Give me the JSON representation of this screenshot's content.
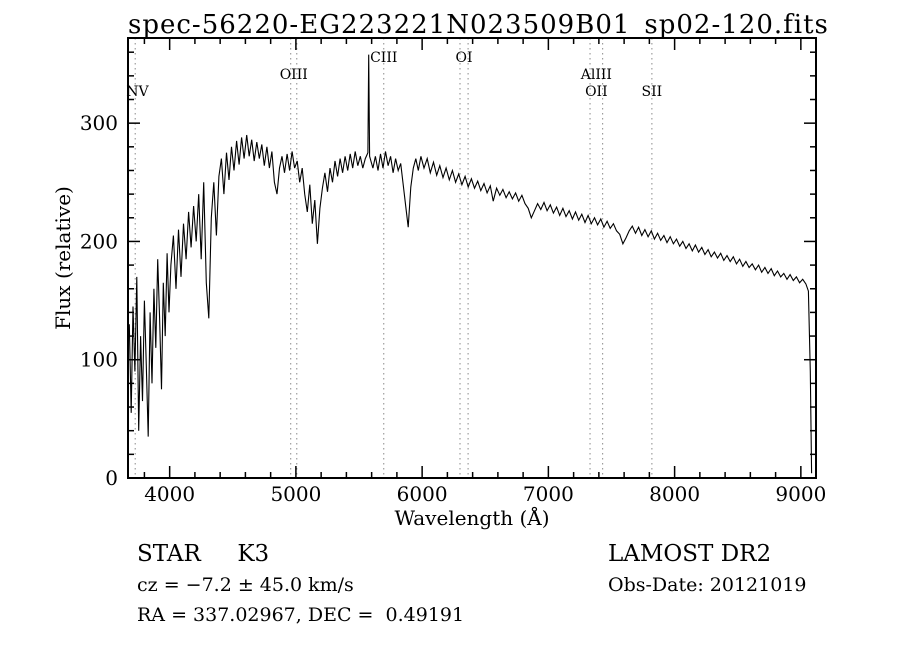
{
  "title": "spec-56220-EG223221N023509B01_sp02-120.fits",
  "footer": {
    "class_label": "STAR     K3",
    "survey": "LAMOST DR2",
    "cz": "cz = −7.2 ± 45.0 km/s",
    "obs_date": "Obs-Date: 20121019",
    "radec": "RA = 337.02967, DEC =  0.49191"
  },
  "chart_data": {
    "type": "line",
    "title": "spec-56220-EG223221N023509B01_sp02-120.fits",
    "xlabel": "Wavelength (Å)",
    "ylabel": "Flux (relative)",
    "xlim": [
      3670,
      9120
    ],
    "ylim": [
      0,
      372
    ],
    "xticks": [
      4000,
      5000,
      6000,
      7000,
      8000,
      9000
    ],
    "yticks": [
      0,
      100,
      200,
      300
    ],
    "x_minor_step": 200,
    "y_minor_step": 20,
    "grid": false,
    "legend": "none",
    "line_color": "#000000",
    "marker_color": "#8a8a8a",
    "line_markers": {
      "lines": [
        3727,
        4959,
        5007,
        5696,
        6300,
        6364,
        7330,
        7430,
        7820
      ],
      "labels": [
        {
          "text": "NV",
          "wavelength": 3745,
          "row": 2
        },
        {
          "text": "OIII",
          "wavelength": 4983,
          "row": 1
        },
        {
          "text": "CIII",
          "wavelength": 5696,
          "row": 0
        },
        {
          "text": "OI",
          "wavelength": 6332,
          "row": 0
        },
        {
          "text": "AlIII",
          "wavelength": 7380,
          "row": 1
        },
        {
          "text": "OII",
          "wavelength": 7380,
          "row": 2
        },
        {
          "text": "SII",
          "wavelength": 7820,
          "row": 2
        }
      ]
    },
    "series": [
      {
        "name": "flux",
        "points": [
          [
            3680,
            130
          ],
          [
            3695,
            55
          ],
          [
            3710,
            145
          ],
          [
            3725,
            90
          ],
          [
            3740,
            170
          ],
          [
            3755,
            40
          ],
          [
            3770,
            120
          ],
          [
            3785,
            65
          ],
          [
            3800,
            150
          ],
          [
            3815,
            95
          ],
          [
            3830,
            35
          ],
          [
            3845,
            140
          ],
          [
            3860,
            80
          ],
          [
            3875,
            160
          ],
          [
            3890,
            110
          ],
          [
            3905,
            185
          ],
          [
            3920,
            135
          ],
          [
            3935,
            75
          ],
          [
            3950,
            165
          ],
          [
            3965,
            120
          ],
          [
            3980,
            190
          ],
          [
            3995,
            140
          ],
          [
            4010,
            180
          ],
          [
            4030,
            205
          ],
          [
            4050,
            160
          ],
          [
            4070,
            210
          ],
          [
            4090,
            170
          ],
          [
            4110,
            215
          ],
          [
            4130,
            185
          ],
          [
            4150,
            225
          ],
          [
            4170,
            195
          ],
          [
            4190,
            230
          ],
          [
            4210,
            200
          ],
          [
            4230,
            240
          ],
          [
            4250,
            185
          ],
          [
            4270,
            250
          ],
          [
            4290,
            165
          ],
          [
            4310,
            135
          ],
          [
            4330,
            220
          ],
          [
            4350,
            250
          ],
          [
            4370,
            205
          ],
          [
            4390,
            255
          ],
          [
            4410,
            270
          ],
          [
            4430,
            240
          ],
          [
            4450,
            275
          ],
          [
            4470,
            252
          ],
          [
            4490,
            280
          ],
          [
            4510,
            260
          ],
          [
            4530,
            285
          ],
          [
            4550,
            265
          ],
          [
            4570,
            288
          ],
          [
            4590,
            270
          ],
          [
            4610,
            290
          ],
          [
            4630,
            272
          ],
          [
            4650,
            286
          ],
          [
            4670,
            268
          ],
          [
            4690,
            284
          ],
          [
            4710,
            270
          ],
          [
            4730,
            282
          ],
          [
            4750,
            264
          ],
          [
            4770,
            280
          ],
          [
            4790,
            262
          ],
          [
            4810,
            276
          ],
          [
            4830,
            250
          ],
          [
            4850,
            240
          ],
          [
            4870,
            262
          ],
          [
            4890,
            272
          ],
          [
            4910,
            258
          ],
          [
            4930,
            274
          ],
          [
            4950,
            260
          ],
          [
            4970,
            276
          ],
          [
            4990,
            262
          ],
          [
            5010,
            268
          ],
          [
            5030,
            250
          ],
          [
            5050,
            262
          ],
          [
            5070,
            240
          ],
          [
            5090,
            225
          ],
          [
            5110,
            248
          ],
          [
            5130,
            215
          ],
          [
            5150,
            235
          ],
          [
            5170,
            198
          ],
          [
            5190,
            228
          ],
          [
            5210,
            245
          ],
          [
            5230,
            258
          ],
          [
            5250,
            242
          ],
          [
            5270,
            262
          ],
          [
            5290,
            250
          ],
          [
            5310,
            268
          ],
          [
            5330,
            255
          ],
          [
            5350,
            270
          ],
          [
            5370,
            258
          ],
          [
            5390,
            272
          ],
          [
            5410,
            260
          ],
          [
            5430,
            274
          ],
          [
            5450,
            262
          ],
          [
            5470,
            276
          ],
          [
            5490,
            264
          ],
          [
            5510,
            272
          ],
          [
            5530,
            262
          ],
          [
            5550,
            270
          ],
          [
            5570,
            275
          ],
          [
            5577,
            358
          ],
          [
            5584,
            272
          ],
          [
            5610,
            262
          ],
          [
            5630,
            272
          ],
          [
            5650,
            260
          ],
          [
            5670,
            274
          ],
          [
            5690,
            262
          ],
          [
            5710,
            276
          ],
          [
            5730,
            264
          ],
          [
            5750,
            272
          ],
          [
            5770,
            258
          ],
          [
            5790,
            270
          ],
          [
            5810,
            260
          ],
          [
            5830,
            266
          ],
          [
            5850,
            248
          ],
          [
            5870,
            230
          ],
          [
            5890,
            212
          ],
          [
            5910,
            246
          ],
          [
            5930,
            262
          ],
          [
            5950,
            270
          ],
          [
            5970,
            260
          ],
          [
            5990,
            272
          ],
          [
            6015,
            262
          ],
          [
            6040,
            270
          ],
          [
            6065,
            258
          ],
          [
            6090,
            267
          ],
          [
            6115,
            256
          ],
          [
            6140,
            264
          ],
          [
            6165,
            254
          ],
          [
            6190,
            262
          ],
          [
            6215,
            252
          ],
          [
            6240,
            260
          ],
          [
            6265,
            250
          ],
          [
            6290,
            257
          ],
          [
            6315,
            248
          ],
          [
            6340,
            255
          ],
          [
            6365,
            246
          ],
          [
            6390,
            253
          ],
          [
            6415,
            245
          ],
          [
            6440,
            251
          ],
          [
            6465,
            243
          ],
          [
            6490,
            249
          ],
          [
            6515,
            241
          ],
          [
            6540,
            247
          ],
          [
            6563,
            234
          ],
          [
            6590,
            245
          ],
          [
            6615,
            239
          ],
          [
            6640,
            244
          ],
          [
            6665,
            237
          ],
          [
            6690,
            242
          ],
          [
            6715,
            236
          ],
          [
            6740,
            241
          ],
          [
            6765,
            234
          ],
          [
            6790,
            239
          ],
          [
            6815,
            232
          ],
          [
            6840,
            228
          ],
          [
            6865,
            220
          ],
          [
            6890,
            226
          ],
          [
            6915,
            232
          ],
          [
            6940,
            227
          ],
          [
            6965,
            233
          ],
          [
            6990,
            226
          ],
          [
            7015,
            231
          ],
          [
            7040,
            224
          ],
          [
            7065,
            229
          ],
          [
            7090,
            222
          ],
          [
            7115,
            228
          ],
          [
            7140,
            221
          ],
          [
            7165,
            226
          ],
          [
            7190,
            219
          ],
          [
            7215,
            225
          ],
          [
            7240,
            218
          ],
          [
            7265,
            223
          ],
          [
            7290,
            216
          ],
          [
            7315,
            222
          ],
          [
            7340,
            215
          ],
          [
            7365,
            220
          ],
          [
            7390,
            214
          ],
          [
            7415,
            219
          ],
          [
            7440,
            212
          ],
          [
            7465,
            217
          ],
          [
            7490,
            211
          ],
          [
            7515,
            215
          ],
          [
            7540,
            209
          ],
          [
            7565,
            206
          ],
          [
            7590,
            198
          ],
          [
            7615,
            203
          ],
          [
            7640,
            209
          ],
          [
            7665,
            213
          ],
          [
            7690,
            207
          ],
          [
            7715,
            212
          ],
          [
            7740,
            205
          ],
          [
            7765,
            210
          ],
          [
            7790,
            204
          ],
          [
            7815,
            209
          ],
          [
            7840,
            202
          ],
          [
            7865,
            207
          ],
          [
            7890,
            201
          ],
          [
            7915,
            205
          ],
          [
            7940,
            199
          ],
          [
            7965,
            204
          ],
          [
            7990,
            198
          ],
          [
            8015,
            202
          ],
          [
            8040,
            196
          ],
          [
            8065,
            200
          ],
          [
            8090,
            194
          ],
          [
            8115,
            198
          ],
          [
            8140,
            192
          ],
          [
            8165,
            197
          ],
          [
            8190,
            191
          ],
          [
            8215,
            195
          ],
          [
            8240,
            189
          ],
          [
            8265,
            193
          ],
          [
            8290,
            187
          ],
          [
            8315,
            191
          ],
          [
            8340,
            186
          ],
          [
            8365,
            190
          ],
          [
            8390,
            184
          ],
          [
            8415,
            188
          ],
          [
            8440,
            183
          ],
          [
            8465,
            187
          ],
          [
            8490,
            181
          ],
          [
            8515,
            185
          ],
          [
            8540,
            179
          ],
          [
            8565,
            183
          ],
          [
            8590,
            178
          ],
          [
            8615,
            181
          ],
          [
            8640,
            176
          ],
          [
            8665,
            180
          ],
          [
            8690,
            174
          ],
          [
            8715,
            178
          ],
          [
            8740,
            173
          ],
          [
            8765,
            177
          ],
          [
            8790,
            171
          ],
          [
            8815,
            175
          ],
          [
            8840,
            170
          ],
          [
            8865,
            173
          ],
          [
            8890,
            168
          ],
          [
            8915,
            172
          ],
          [
            8940,
            167
          ],
          [
            8965,
            170
          ],
          [
            8990,
            165
          ],
          [
            9015,
            168
          ],
          [
            9040,
            164
          ],
          [
            9060,
            158
          ],
          [
            9075,
            90
          ],
          [
            9085,
            4
          ]
        ]
      }
    ]
  }
}
